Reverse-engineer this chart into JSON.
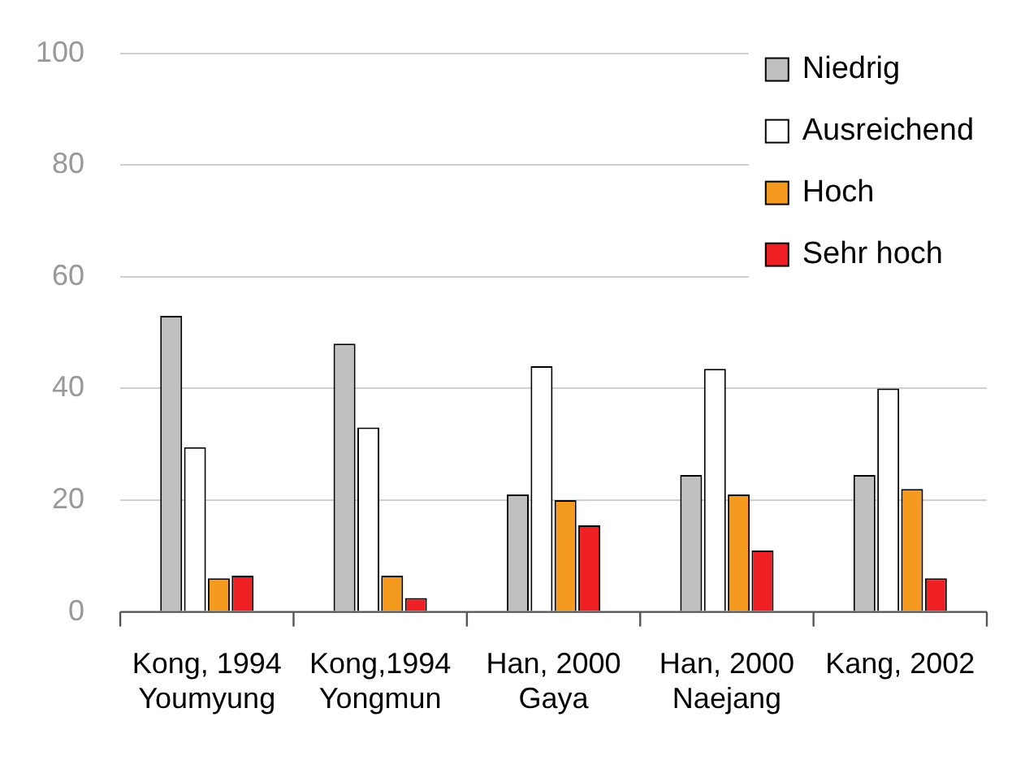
{
  "chart_data": {
    "type": "bar",
    "categories": [
      "Kong, 1994\nYoumyung",
      "Kong,1994\nYongmun",
      "Han, 2000\nGaya",
      "Han, 2000\nNaejang",
      "Kang, 2002"
    ],
    "series": [
      {
        "name": "Niedrig",
        "color": "#c0c0c0",
        "values": [
          53,
          48,
          21,
          24.5,
          24.5
        ]
      },
      {
        "name": "Ausreichend",
        "color": "#ffffff",
        "values": [
          29.5,
          33,
          44,
          43.5,
          40
        ]
      },
      {
        "name": "Hoch",
        "color": "#f39a1f",
        "values": [
          6,
          6.5,
          20,
          21,
          22
        ]
      },
      {
        "name": "Sehr hoch",
        "color": "#ee2024",
        "values": [
          6.5,
          2.5,
          15.5,
          11,
          6
        ]
      }
    ],
    "ylim": [
      0,
      100
    ],
    "yticks": [
      0,
      20,
      40,
      60,
      80,
      100
    ],
    "grid": "y",
    "legend": "top right"
  }
}
